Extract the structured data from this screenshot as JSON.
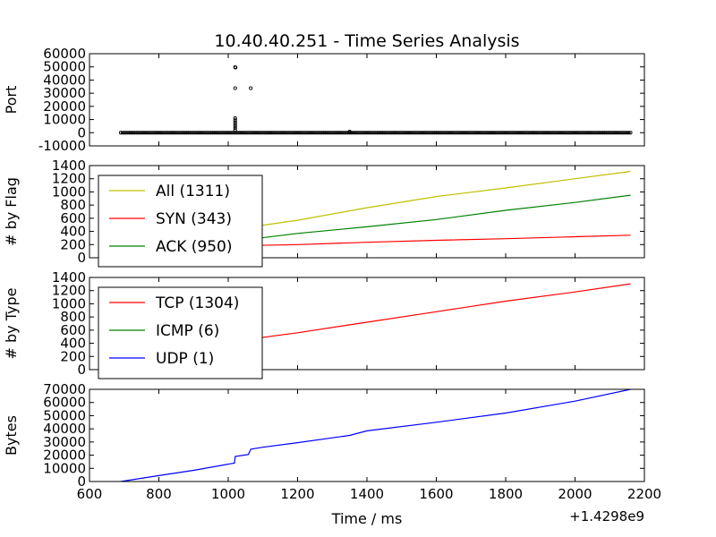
{
  "chart_data": {
    "title": "10.40.40.251 - Time Series Analysis",
    "xlabel": "Time / ms",
    "x_offset_label": "+1.4298e9",
    "xlim": [
      600,
      2200
    ],
    "xticks": [
      600,
      800,
      1000,
      1200,
      1400,
      1600,
      1800,
      2000,
      2200
    ],
    "subplots": [
      {
        "type": "scatter",
        "ylabel": "Port",
        "ylim": [
          -10000,
          60000
        ],
        "yticks": [
          -10000,
          0,
          10000,
          20000,
          30000,
          40000,
          50000,
          60000
        ],
        "series": [
          {
            "color": "#000000",
            "dense_range": {
              "x": [
                690,
                2160
              ],
              "y": 0
            },
            "points": [
              [
                1020,
                49800
              ],
              [
                1021,
                49500
              ],
              [
                1020,
                33800
              ],
              [
                1065,
                33800
              ],
              [
                1020,
                11000
              ],
              [
                1020,
                9500
              ],
              [
                1020,
                8000
              ],
              [
                1020,
                6500
              ],
              [
                1020,
                5000
              ],
              [
                1020,
                3500
              ],
              [
                1020,
                2000
              ],
              [
                1350,
                800
              ]
            ]
          }
        ]
      },
      {
        "type": "line",
        "ylabel": "# by Flag",
        "ylim": [
          0,
          1400
        ],
        "yticks": [
          0,
          200,
          400,
          600,
          800,
          1000,
          1200,
          1400
        ],
        "legend": "upper-left",
        "series": [
          {
            "name": "All (1311)",
            "color": "#bfbf00",
            "x": [
              690,
              1000,
              1200,
              1400,
              1600,
              1800,
              2000,
              2160
            ],
            "y": [
              0,
              420,
              570,
              760,
              930,
              1060,
              1200,
              1311
            ]
          },
          {
            "name": "SYN (343)",
            "color": "#ff0000",
            "x": [
              690,
              1000,
              1200,
              1400,
              1600,
              1800,
              2000,
              2160
            ],
            "y": [
              0,
              180,
              200,
              235,
              265,
              290,
              320,
              343
            ]
          },
          {
            "name": "ACK (950)",
            "color": "#008000",
            "x": [
              690,
              1000,
              1200,
              1400,
              1600,
              1800,
              2000,
              2160
            ],
            "y": [
              0,
              240,
              370,
              470,
              580,
              720,
              840,
              950
            ]
          }
        ]
      },
      {
        "type": "line",
        "ylabel": "# by Type",
        "ylim": [
          0,
          1400
        ],
        "yticks": [
          0,
          200,
          400,
          600,
          800,
          1000,
          1200,
          1400
        ],
        "legend": "upper-left",
        "series": [
          {
            "name": "TCP (1304)",
            "color": "#ff0000",
            "x": [
              690,
              1000,
              1200,
              1400,
              1600,
              1800,
              2000,
              2160
            ],
            "y": [
              0,
              420,
              560,
              720,
              880,
              1040,
              1180,
              1304
            ]
          },
          {
            "name": "ICMP (6)",
            "color": "#008000",
            "x": [
              1020,
              1065
            ],
            "y": [
              0,
              6
            ]
          },
          {
            "name": "UDP (1)",
            "color": "#0000ff",
            "x": [
              1350,
              1350
            ],
            "y": [
              0,
              1
            ]
          }
        ]
      },
      {
        "type": "line",
        "ylabel": "Bytes",
        "ylim": [
          0,
          70000
        ],
        "yticks": [
          0,
          10000,
          20000,
          30000,
          40000,
          50000,
          60000,
          70000
        ],
        "series": [
          {
            "color": "#0000ff",
            "x": [
              690,
              800,
              900,
              1018,
              1020,
              1058,
              1065,
              1100,
              1200,
              1350,
              1400,
              1600,
              1800,
              2000,
              2160
            ],
            "y": [
              0,
              4500,
              8500,
              14000,
              19000,
              20500,
              24500,
              26000,
              29500,
              35000,
              38500,
              45000,
              52000,
              61000,
              70000
            ]
          }
        ]
      }
    ]
  }
}
